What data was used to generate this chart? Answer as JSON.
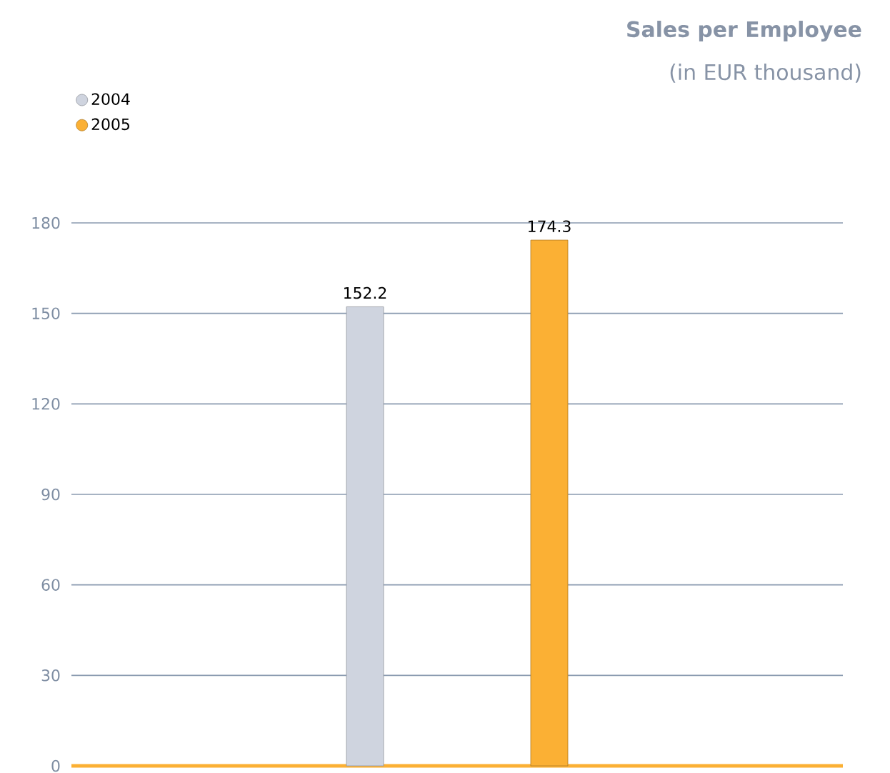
{
  "chart_data": {
    "type": "bar",
    "title": "Sales per Employee",
    "subtitle": "(in EUR thousand)",
    "categories": [
      null
    ],
    "series": [
      {
        "name": "2004",
        "color": "#cfd4df",
        "values": [
          152.2
        ]
      },
      {
        "name": "2005",
        "color": "#fbb034",
        "values": [
          174.3
        ]
      }
    ],
    "ylim": [
      0,
      180
    ],
    "yticks": [
      0,
      30,
      60,
      90,
      120,
      150,
      180
    ],
    "grid": "y",
    "legend": "top left",
    "data_labels": true
  }
}
